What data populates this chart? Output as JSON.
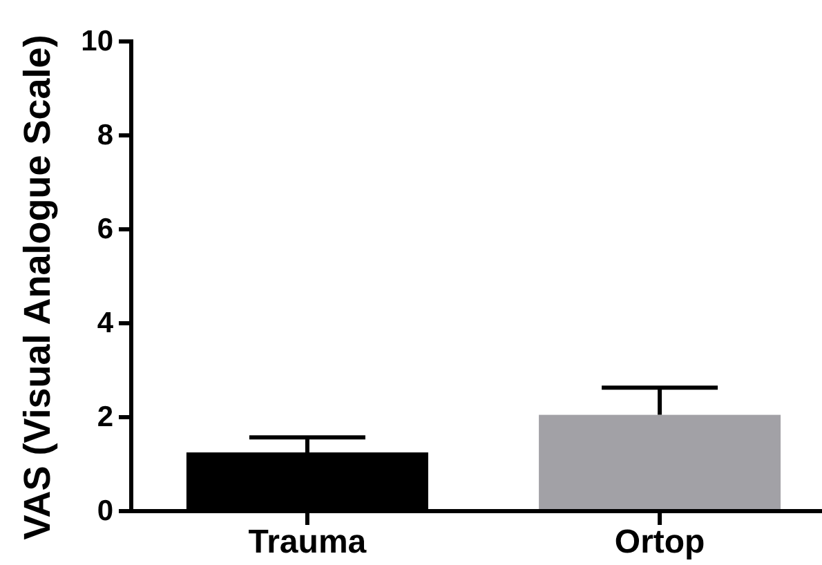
{
  "chart_data": {
    "type": "bar",
    "ylabel": "VAS (Visual Analogue Scale)",
    "categories": [
      "Trauma",
      "Ortop"
    ],
    "values": [
      1.25,
      2.05
    ],
    "colors": [
      "#000000",
      "#a2a1a6"
    ],
    "errors": [
      [
        1.25,
        1.57
      ],
      [
        2.05,
        2.63
      ]
    ],
    "ylim": [
      0,
      10
    ],
    "yticks": [
      0,
      2,
      4,
      6,
      8,
      10
    ]
  }
}
